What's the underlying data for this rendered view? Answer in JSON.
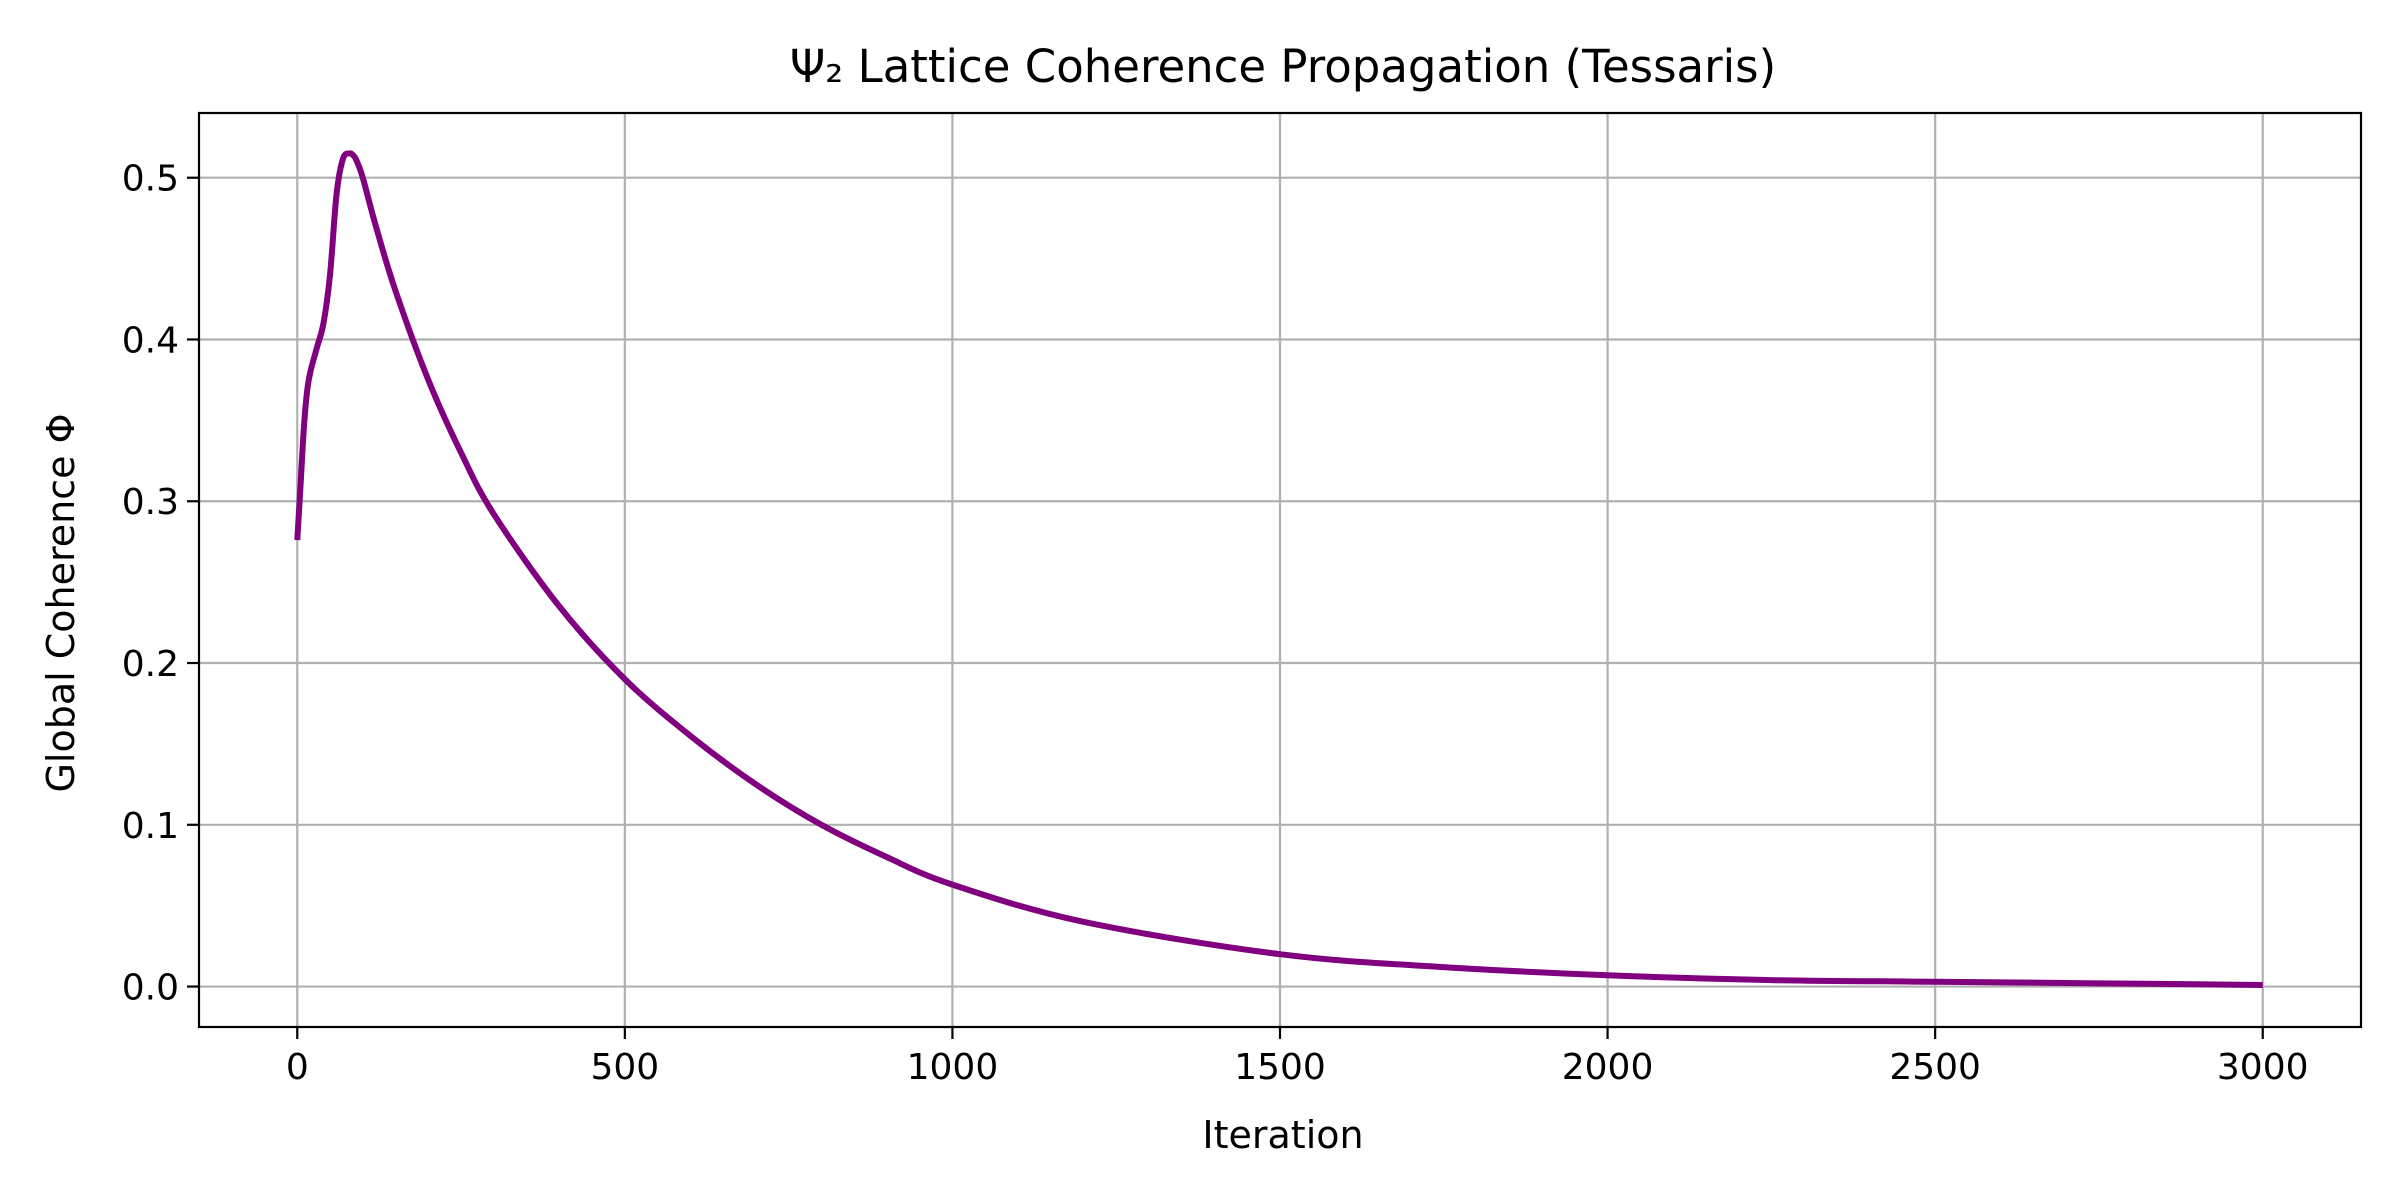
{
  "chart_data": {
    "type": "line",
    "title": "Ψ₂ Lattice Coherence Propagation (Tessaris)",
    "xlabel": "Iteration",
    "ylabel": "Global Coherence Φ",
    "xlim": [
      -150,
      3150
    ],
    "ylim": [
      -0.025,
      0.54
    ],
    "xticks": [
      0,
      500,
      1000,
      1500,
      2000,
      2500,
      3000
    ],
    "xtick_labels": [
      "0",
      "500",
      "1000",
      "1500",
      "2000",
      "2500",
      "3000"
    ],
    "yticks": [
      0.0,
      0.1,
      0.2,
      0.3,
      0.4,
      0.5
    ],
    "ytick_labels": [
      "0.0",
      "0.1",
      "0.2",
      "0.3",
      "0.4",
      "0.5"
    ],
    "grid": true,
    "series": [
      {
        "color": "#800080",
        "x": [
          0,
          5,
          10,
          15,
          20,
          30,
          40,
          50,
          60,
          70,
          80,
          85,
          90,
          100,
          120,
          150,
          200,
          250,
          300,
          400,
          500,
          600,
          700,
          800,
          900,
          1000,
          1200,
          1500,
          1750,
          2000,
          2250,
          2500,
          2750,
          3000
        ],
        "y": [
          0.276,
          0.31,
          0.345,
          0.368,
          0.38,
          0.395,
          0.41,
          0.44,
          0.49,
          0.512,
          0.515,
          0.514,
          0.511,
          0.5,
          0.47,
          0.43,
          0.375,
          0.33,
          0.292,
          0.235,
          0.19,
          0.155,
          0.125,
          0.1,
          0.08,
          0.063,
          0.04,
          0.02,
          0.012,
          0.007,
          0.004,
          0.003,
          0.002,
          0.001
        ]
      }
    ]
  }
}
